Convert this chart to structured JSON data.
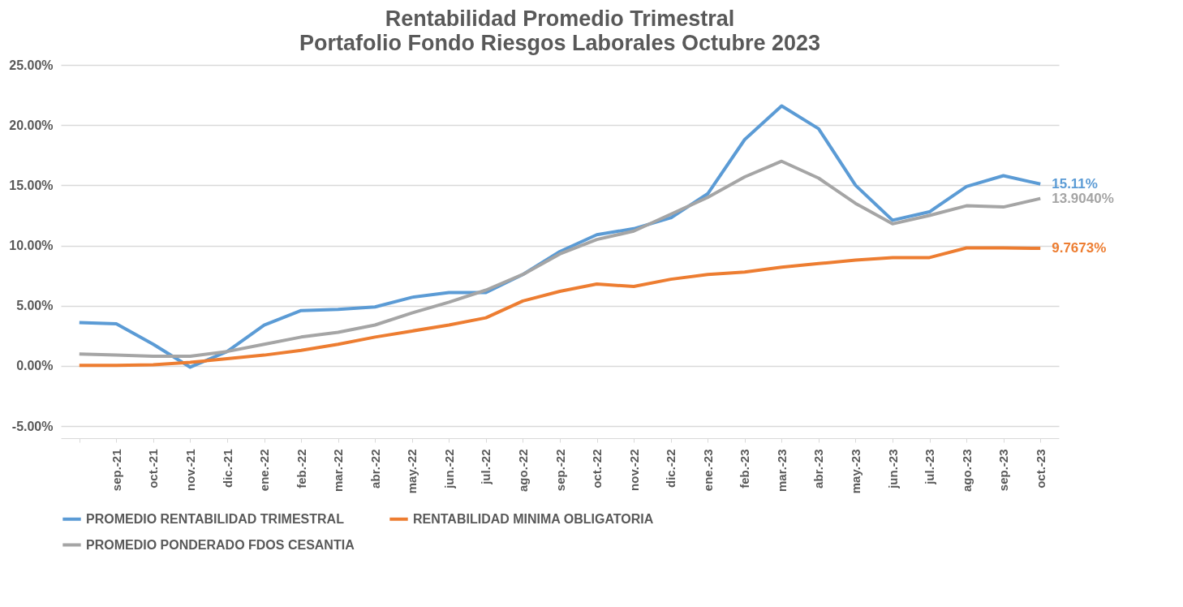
{
  "chart_data": {
    "type": "line",
    "title": "Rentabilidad Promedio Trimestral",
    "subtitle": "Portafolio Fondo Riesgos Laborales   Octubre 2023",
    "categories": [
      null,
      "sep.-21",
      "oct.-21",
      "nov.-21",
      "dic.-21",
      "ene.-22",
      "feb.-22",
      "mar.-22",
      "abr.-22",
      "may.-22",
      "jun.-22",
      "jul.-22",
      "ago.-22",
      "sep.-22",
      "oct.-22",
      "nov.-22",
      "dic.-22",
      "ene.-23",
      "feb.-23",
      "mar.-23",
      "abr.-23",
      "may.-23",
      "jun.-23",
      "jul.-23",
      "ago.-23",
      "sep.-23",
      "oct.-23"
    ],
    "series": [
      {
        "name": "PROMEDIO RENTABILIDAD TRIMESTRAL",
        "color": "#5b9bd5",
        "values": [
          3.6,
          3.5,
          1.8,
          -0.1,
          1.2,
          3.4,
          4.6,
          4.7,
          4.9,
          5.7,
          6.1,
          6.1,
          7.6,
          9.5,
          10.9,
          11.4,
          12.3,
          14.3,
          18.8,
          21.6,
          19.7,
          15.0,
          12.1,
          12.8,
          14.9,
          15.8,
          15.11
        ],
        "value_labels": [
          null,
          null,
          null,
          null,
          null,
          null,
          null,
          null,
          null,
          null,
          null,
          null,
          null,
          null,
          null,
          null,
          null,
          null,
          null,
          null,
          null,
          null,
          null,
          null,
          null,
          null,
          "15.11%"
        ]
      },
      {
        "name": "RENTABILIDAD MINIMA OBLIGATORIA",
        "color": "#ed7d31",
        "values": [
          0.05,
          0.05,
          0.1,
          0.3,
          0.6,
          0.9,
          1.3,
          1.8,
          2.4,
          2.9,
          3.4,
          4.0,
          5.4,
          6.2,
          6.8,
          6.6,
          7.2,
          7.6,
          7.8,
          8.2,
          8.5,
          8.8,
          9.0,
          9.0,
          9.8,
          9.8,
          9.7673
        ],
        "value_labels": [
          null,
          null,
          null,
          null,
          null,
          null,
          null,
          null,
          null,
          null,
          null,
          null,
          null,
          null,
          null,
          null,
          null,
          null,
          null,
          null,
          null,
          null,
          null,
          null,
          null,
          null,
          "9.7673%"
        ]
      },
      {
        "name": "PROMEDIO PONDERADO  FDOS CESANTIA",
        "color": "#a5a5a5",
        "values": [
          1.0,
          0.9,
          0.8,
          0.8,
          1.2,
          1.8,
          2.4,
          2.8,
          3.4,
          4.4,
          5.3,
          6.3,
          7.6,
          9.3,
          10.5,
          11.2,
          12.6,
          14.0,
          15.7,
          17.0,
          15.6,
          13.5,
          11.8,
          12.5,
          13.3,
          13.2,
          13.904
        ],
        "value_labels": [
          null,
          null,
          null,
          null,
          null,
          null,
          null,
          null,
          null,
          null,
          null,
          null,
          null,
          null,
          null,
          null,
          null,
          null,
          null,
          null,
          null,
          null,
          null,
          null,
          null,
          null,
          "13.9040%"
        ]
      }
    ],
    "ylim": [
      -6,
      25
    ],
    "yticks": [
      {
        "value": -5,
        "label": "-5.00%"
      },
      {
        "value": 0,
        "label": "0.00%"
      },
      {
        "value": 5,
        "label": "5.00%"
      },
      {
        "value": 10,
        "label": "10.00%"
      },
      {
        "value": 15,
        "label": "15.00%"
      },
      {
        "value": 20,
        "label": "20.00%"
      },
      {
        "value": 25,
        "label": "25.00%"
      }
    ],
    "grid": "y",
    "legend": "bottom",
    "marker": "none",
    "line_style": "solid"
  }
}
